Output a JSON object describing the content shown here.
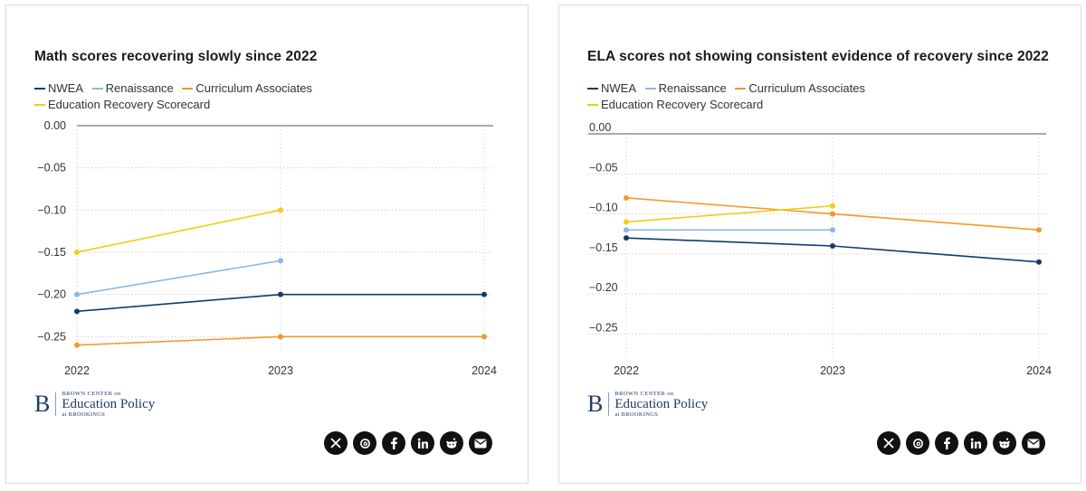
{
  "legend": [
    {
      "label": "NWEA",
      "color": "#123a6b"
    },
    {
      "label": "Renaissance",
      "color": "#8ab8e6"
    },
    {
      "label": "Curriculum Associates",
      "color": "#f5982a"
    },
    {
      "label": "Education Recovery Scorecard",
      "color": "#f1cd10"
    }
  ],
  "brand": {
    "letter": "B",
    "top": "BROWN CENTER on",
    "middle": "Education Policy",
    "bottom": "at BROOKINGS"
  },
  "share_icons": [
    "x-icon",
    "threads-icon",
    "facebook-icon",
    "linkedin-icon",
    "reddit-icon",
    "email-icon"
  ],
  "chart_data": [
    {
      "type": "line",
      "title": "Math scores recovering slowly since 2022",
      "x": [
        "2022",
        "2023",
        "2024"
      ],
      "ylim": [
        -0.27,
        0.0
      ],
      "yticks": [
        0.0,
        -0.05,
        -0.1,
        -0.15,
        -0.2,
        -0.25
      ],
      "ytick_labels": [
        "0.00",
        "−0.05",
        "−0.10",
        "−0.15",
        "−0.20",
        "−0.25"
      ],
      "series": [
        {
          "name": "NWEA",
          "color": "#123a6b",
          "values": [
            -0.22,
            -0.2,
            -0.2
          ]
        },
        {
          "name": "Renaissance",
          "color": "#8ab8e6",
          "values": [
            -0.2,
            -0.16,
            null
          ]
        },
        {
          "name": "Curriculum Associates",
          "color": "#f5982a",
          "values": [
            -0.26,
            -0.25,
            -0.25
          ]
        },
        {
          "name": "Education Recovery Scorecard",
          "color": "#f1cd10",
          "values": [
            -0.15,
            -0.1,
            null
          ]
        }
      ]
    },
    {
      "type": "line",
      "title": "ELA scores not showing consistent evidence of recovery since 2022",
      "x": [
        "2022",
        "2023",
        "2024"
      ],
      "ylim": [
        -0.28,
        0.0
      ],
      "yticks": [
        0.0,
        -0.05,
        -0.1,
        -0.15,
        -0.2,
        -0.25
      ],
      "ytick_labels": [
        "0.00",
        "−0.05",
        "−0.10",
        "−0.15",
        "−0.20",
        "−0.25"
      ],
      "series": [
        {
          "name": "NWEA",
          "color": "#123a6b",
          "values": [
            -0.13,
            -0.14,
            -0.16
          ]
        },
        {
          "name": "Renaissance",
          "color": "#8ab8e6",
          "values": [
            -0.12,
            -0.12,
            null
          ]
        },
        {
          "name": "Curriculum Associates",
          "color": "#f5982a",
          "values": [
            -0.08,
            -0.1,
            -0.12
          ]
        },
        {
          "name": "Education Recovery Scorecard",
          "color": "#f1cd10",
          "values": [
            -0.11,
            -0.09,
            null
          ]
        }
      ]
    }
  ]
}
